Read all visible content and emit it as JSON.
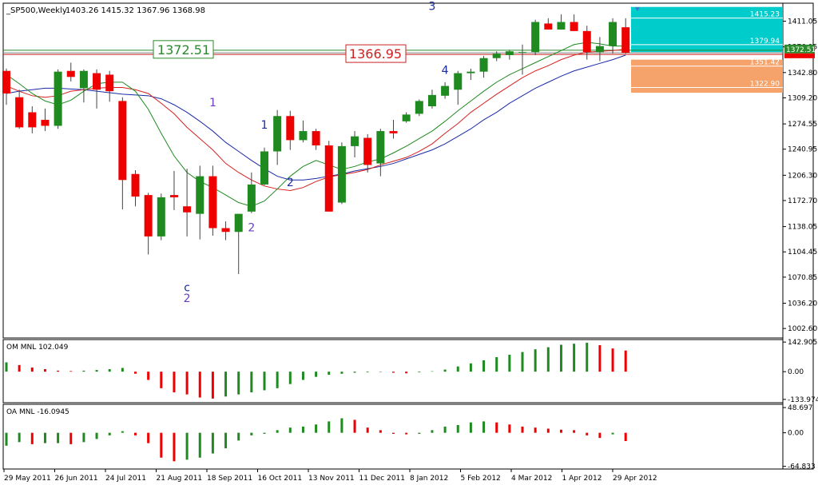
{
  "header": {
    "symbol": "_SP500,Weekly",
    "ohlc": "1403.26 1415.32 1367.96 1368.98"
  },
  "price_boxes": {
    "green_label": "1372.51",
    "red_label": "1366.95",
    "price_tag": "1372.51",
    "price_tag_small": "1368.98"
  },
  "right_labels": {
    "cyan_top": "1415.23",
    "cyan_mid": "1379.94",
    "orange_top": "1351.42",
    "orange_bottom": "1322.90"
  },
  "wave_labels": [
    {
      "text": "1",
      "color": "#6a3fc0",
      "x_index": 16,
      "price": 1298
    },
    {
      "text": "2",
      "color": "#6a3fc0",
      "x_index": 19,
      "price": 1132
    },
    {
      "text": "1",
      "color": "#1a2aa0",
      "x_index": 20,
      "price": 1268
    },
    {
      "text": "2",
      "color": "#1a2aa0",
      "x_index": 22,
      "price": 1192
    },
    {
      "text": "3",
      "color": "#1a2aa0",
      "x_index": 33,
      "price": 1426
    },
    {
      "text": "4",
      "color": "#1a2aa0",
      "x_index": 34,
      "price": 1341
    },
    {
      "text": "c",
      "color": "#1a2aa0",
      "x_index": 14,
      "price": 1052
    },
    {
      "text": "2",
      "color": "#6a3fc0",
      "x_index": 14,
      "price": 1038
    }
  ],
  "indicators": {
    "om_title": "OM MNL 102.049",
    "oa_title": "OA MNL -16.0945"
  },
  "chart_data": [
    {
      "type": "candlestick",
      "title": "_SP500,Weekly",
      "x_labels": [
        "29 May 2011",
        "26 Jun 2011",
        "24 Jul 2011",
        "21 Aug 2011",
        "18 Sep 2011",
        "16 Oct 2011",
        "13 Nov 2011",
        "11 Dec 2011",
        "8 Jan 2012",
        "5 Feb 2012",
        "4 Mar 2012",
        "1 Apr 2012",
        "29 Apr 2012"
      ],
      "y_ticks": [
        "1411.05",
        "1376.95",
        "1342.80",
        "1309.20",
        "1274.55",
        "1240.95",
        "1206.30",
        "1172.70",
        "1138.05",
        "1104.45",
        "1070.85",
        "1036.20",
        "1002.60"
      ],
      "ylim": [
        990,
        1435
      ],
      "candles": [
        {
          "o": 1345,
          "h": 1348,
          "l": 1300,
          "c": 1315
        },
        {
          "o": 1310,
          "h": 1320,
          "l": 1268,
          "c": 1270
        },
        {
          "o": 1290,
          "h": 1298,
          "l": 1262,
          "c": 1270
        },
        {
          "o": 1280,
          "h": 1295,
          "l": 1265,
          "c": 1272
        },
        {
          "o": 1272,
          "h": 1347,
          "l": 1268,
          "c": 1344
        },
        {
          "o": 1345,
          "h": 1356,
          "l": 1331,
          "c": 1337
        },
        {
          "o": 1322,
          "h": 1347,
          "l": 1303,
          "c": 1345
        },
        {
          "o": 1342,
          "h": 1347,
          "l": 1295,
          "c": 1320
        },
        {
          "o": 1340,
          "h": 1345,
          "l": 1304,
          "c": 1318
        },
        {
          "o": 1305,
          "h": 1310,
          "l": 1161,
          "c": 1200
        },
        {
          "o": 1208,
          "h": 1213,
          "l": 1165,
          "c": 1178
        },
        {
          "o": 1180,
          "h": 1183,
          "l": 1101,
          "c": 1125
        },
        {
          "o": 1125,
          "h": 1182,
          "l": 1120,
          "c": 1177
        },
        {
          "o": 1180,
          "h": 1212,
          "l": 1160,
          "c": 1177
        },
        {
          "o": 1165,
          "h": 1215,
          "l": 1125,
          "c": 1157
        },
        {
          "o": 1155,
          "h": 1219,
          "l": 1121,
          "c": 1205
        },
        {
          "o": 1205,
          "h": 1219,
          "l": 1126,
          "c": 1136
        },
        {
          "o": 1136,
          "h": 1145,
          "l": 1120,
          "c": 1131
        },
        {
          "o": 1131,
          "h": 1155,
          "l": 1075,
          "c": 1155
        },
        {
          "o": 1158,
          "h": 1210,
          "l": 1156,
          "c": 1194
        },
        {
          "o": 1194,
          "h": 1243,
          "l": 1193,
          "c": 1238
        },
        {
          "o": 1238,
          "h": 1293,
          "l": 1220,
          "c": 1285
        },
        {
          "o": 1285,
          "h": 1292,
          "l": 1240,
          "c": 1253
        },
        {
          "o": 1253,
          "h": 1279,
          "l": 1250,
          "c": 1265
        },
        {
          "o": 1265,
          "h": 1268,
          "l": 1240,
          "c": 1246
        },
        {
          "o": 1246,
          "h": 1252,
          "l": 1158,
          "c": 1158
        },
        {
          "o": 1170,
          "h": 1250,
          "l": 1168,
          "c": 1245
        },
        {
          "o": 1245,
          "h": 1265,
          "l": 1230,
          "c": 1258
        },
        {
          "o": 1256,
          "h": 1261,
          "l": 1210,
          "c": 1220
        },
        {
          "o": 1222,
          "h": 1268,
          "l": 1205,
          "c": 1265
        },
        {
          "o": 1265,
          "h": 1280,
          "l": 1255,
          "c": 1262
        },
        {
          "o": 1278,
          "h": 1290,
          "l": 1276,
          "c": 1287
        },
        {
          "o": 1288,
          "h": 1307,
          "l": 1285,
          "c": 1305
        },
        {
          "o": 1298,
          "h": 1320,
          "l": 1295,
          "c": 1313
        },
        {
          "o": 1312,
          "h": 1330,
          "l": 1308,
          "c": 1325
        },
        {
          "o": 1320,
          "h": 1345,
          "l": 1300,
          "c": 1342
        },
        {
          "o": 1342,
          "h": 1348,
          "l": 1333,
          "c": 1344
        },
        {
          "o": 1344,
          "h": 1365,
          "l": 1336,
          "c": 1362
        },
        {
          "o": 1362,
          "h": 1371,
          "l": 1358,
          "c": 1368
        },
        {
          "o": 1366,
          "h": 1373,
          "l": 1360,
          "c": 1371
        },
        {
          "o": 1370,
          "h": 1380,
          "l": 1340,
          "c": 1370
        },
        {
          "o": 1370,
          "h": 1413,
          "l": 1366,
          "c": 1410
        },
        {
          "o": 1408,
          "h": 1415,
          "l": 1400,
          "c": 1400
        },
        {
          "o": 1400,
          "h": 1420,
          "l": 1400,
          "c": 1410
        },
        {
          "o": 1410,
          "h": 1420,
          "l": 1398,
          "c": 1398
        },
        {
          "o": 1398,
          "h": 1405,
          "l": 1360,
          "c": 1370
        },
        {
          "o": 1370,
          "h": 1390,
          "l": 1358,
          "c": 1378
        },
        {
          "o": 1378,
          "h": 1415,
          "l": 1368,
          "c": 1410
        },
        {
          "o": 1403,
          "h": 1415,
          "l": 1368,
          "c": 1369
        }
      ],
      "ma_green": [
        1340,
        1328,
        1315,
        1305,
        1300,
        1306,
        1318,
        1328,
        1330,
        1330,
        1318,
        1294,
        1262,
        1232,
        1210,
        1198,
        1190,
        1180,
        1170,
        1165,
        1172,
        1188,
        1205,
        1218,
        1226,
        1220,
        1214,
        1218,
        1224,
        1228,
        1236,
        1245,
        1255,
        1265,
        1278,
        1292,
        1305,
        1318,
        1330,
        1340,
        1348,
        1356,
        1364,
        1372,
        1380,
        1383,
        1381,
        1378,
        1378
      ],
      "ma_red": [
        1325,
        1318,
        1312,
        1310,
        1312,
        1318,
        1320,
        1322,
        1323,
        1323,
        1320,
        1315,
        1302,
        1288,
        1270,
        1255,
        1240,
        1222,
        1210,
        1200,
        1192,
        1188,
        1186,
        1190,
        1198,
        1204,
        1207,
        1210,
        1214,
        1220,
        1225,
        1230,
        1238,
        1248,
        1262,
        1275,
        1290,
        1302,
        1314,
        1325,
        1336,
        1345,
        1352,
        1360,
        1366,
        1370,
        1371,
        1372,
        1374
      ],
      "ma_blue": [
        1315,
        1318,
        1320,
        1322,
        1322,
        1321,
        1320,
        1318,
        1316,
        1314,
        1313,
        1312,
        1308,
        1300,
        1290,
        1278,
        1265,
        1250,
        1238,
        1226,
        1215,
        1205,
        1200,
        1200,
        1202,
        1205,
        1208,
        1212,
        1215,
        1218,
        1222,
        1228,
        1234,
        1240,
        1248,
        1258,
        1268,
        1280,
        1290,
        1302,
        1312,
        1322,
        1330,
        1338,
        1345,
        1350,
        1355,
        1360,
        1366
      ],
      "hlines": [
        1372.51,
        1366.95,
        1368.98
      ]
    },
    {
      "type": "bar",
      "title": "OM MNL 102.049",
      "y_ticks": [
        "142.905",
        "0.00",
        "-133.974"
      ],
      "ylim": [
        -150,
        155
      ],
      "values": [
        45,
        32,
        20,
        12,
        5,
        3,
        5,
        8,
        12,
        18,
        -10,
        -40,
        -80,
        -100,
        -110,
        -125,
        -130,
        -120,
        -110,
        -100,
        -90,
        -80,
        -60,
        -40,
        -25,
        -15,
        -10,
        -5,
        -3,
        -2,
        -5,
        -8,
        -3,
        2,
        10,
        25,
        40,
        55,
        70,
        82,
        95,
        108,
        118,
        130,
        135,
        140,
        128,
        112,
        102
      ]
    },
    {
      "type": "bar",
      "title": "OA MNL -16.0945",
      "y_ticks": [
        "48.697",
        "0.00",
        "-64.833"
      ],
      "ylim": [
        -70,
        55
      ],
      "values": [
        -25,
        -18,
        -22,
        -20,
        -20,
        -22,
        -18,
        -12,
        -5,
        3,
        -5,
        -20,
        -48,
        -55,
        -52,
        -48,
        -40,
        -30,
        -15,
        -5,
        -2,
        5,
        10,
        12,
        16,
        22,
        28,
        25,
        10,
        5,
        -2,
        -3,
        -2,
        5,
        12,
        15,
        20,
        22,
        20,
        16,
        12,
        10,
        8,
        6,
        5,
        -5,
        -10,
        -3,
        -16
      ]
    }
  ]
}
